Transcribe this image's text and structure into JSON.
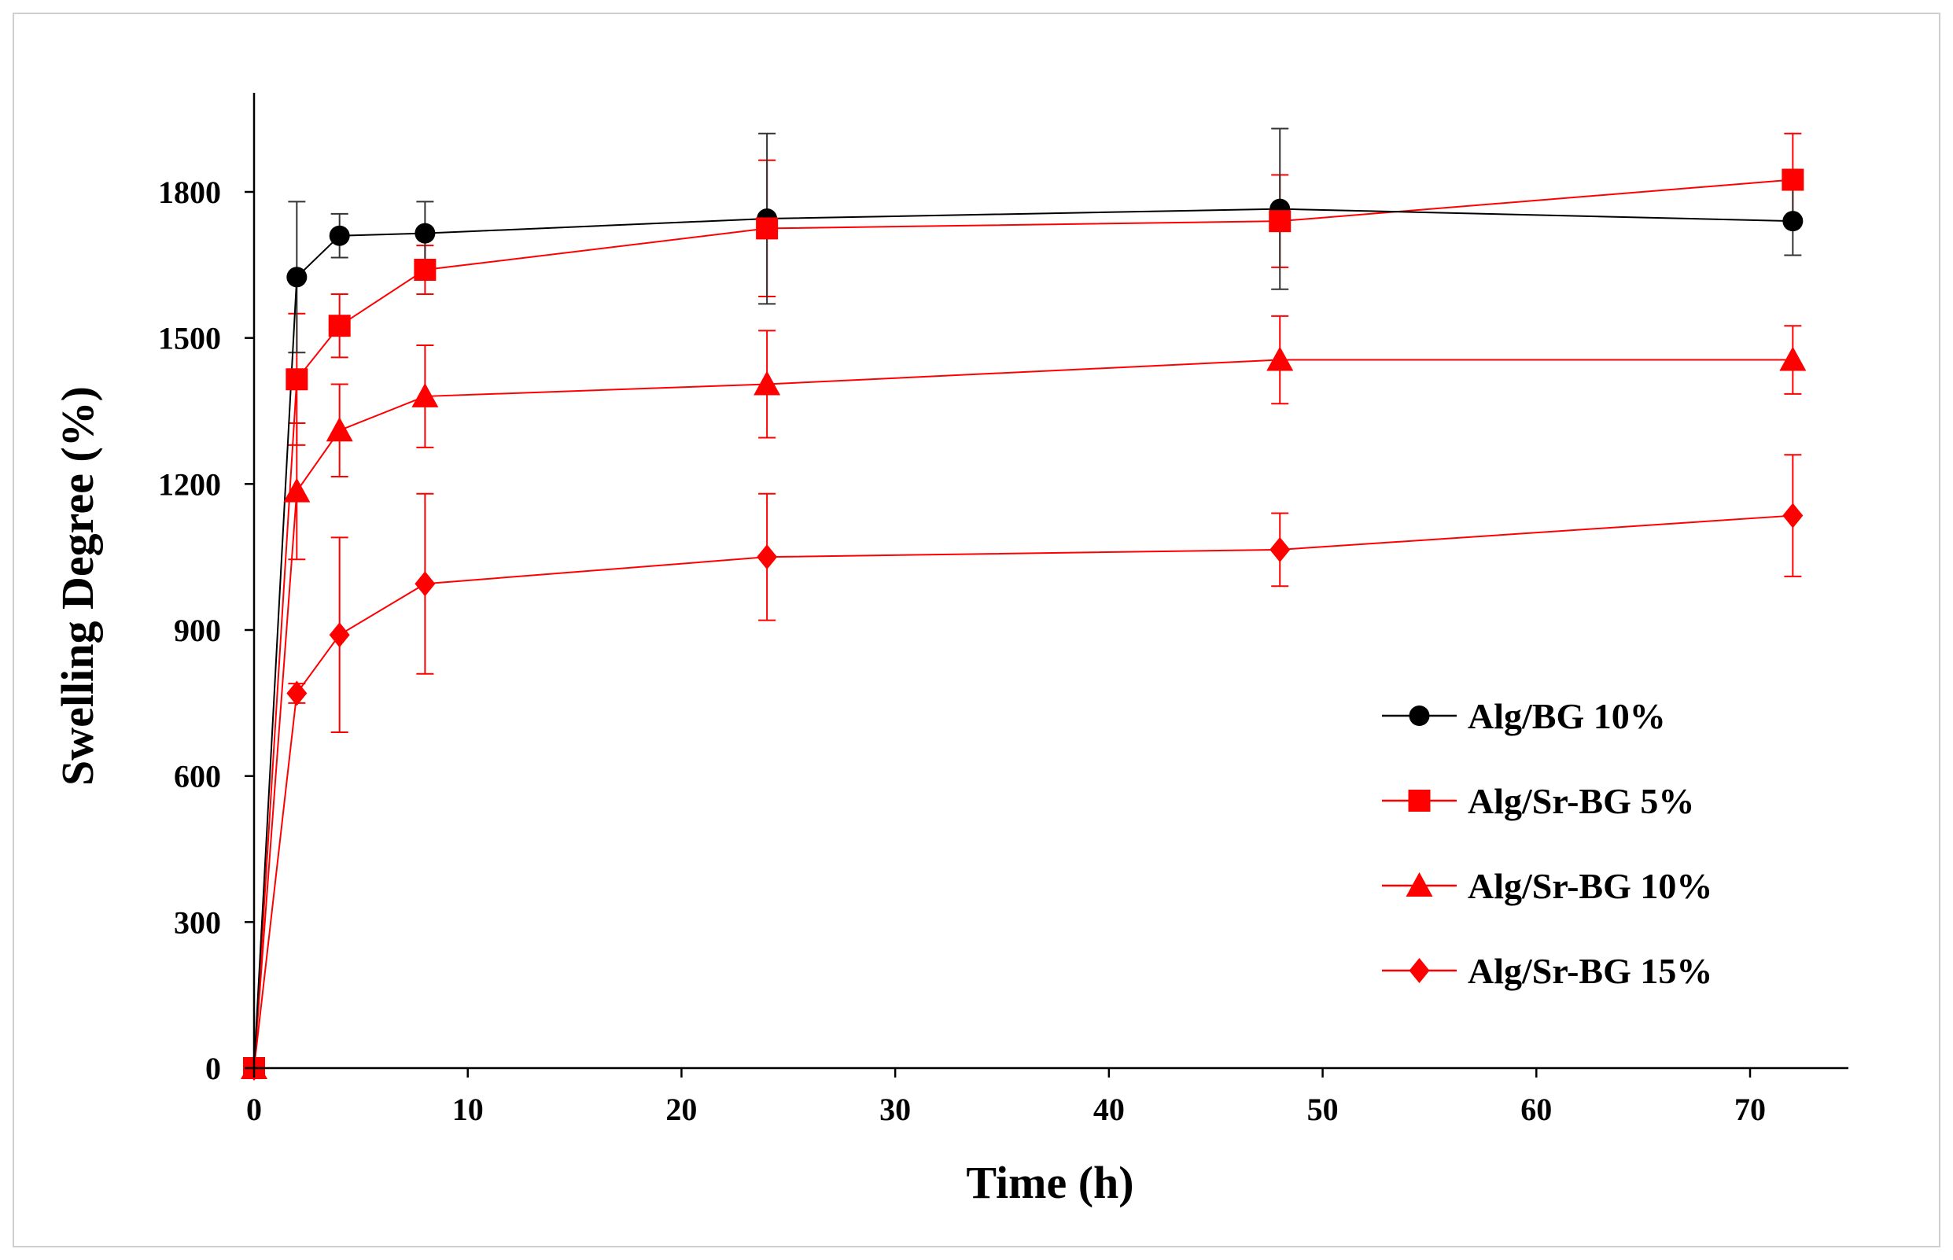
{
  "chart_data": {
    "type": "line",
    "title": "",
    "xlabel": "Time (h)",
    "ylabel": "Swelling Degree (%)",
    "xlim": [
      0,
      75
    ],
    "ylim": [
      0,
      1950
    ],
    "xticks": [
      0,
      10,
      20,
      30,
      40,
      50,
      60,
      70
    ],
    "yticks": [
      0,
      300,
      600,
      900,
      1200,
      1500,
      1800
    ],
    "x": [
      0,
      2,
      4,
      8,
      24,
      48,
      72
    ],
    "legend_position": "right",
    "series": [
      {
        "name": "Alg/BG 10%",
        "color": "#000000",
        "marker": "circle",
        "values": [
          0,
          1625,
          1710,
          1715,
          1745,
          1765,
          1740
        ],
        "errors": [
          0,
          155,
          45,
          65,
          175,
          165,
          70
        ]
      },
      {
        "name": "Alg/Sr-BG 5%",
        "color": "#ff0000",
        "marker": "square",
        "values": [
          0,
          1415,
          1525,
          1640,
          1725,
          1740,
          1825
        ],
        "errors": [
          0,
          135,
          65,
          50,
          140,
          95,
          95
        ]
      },
      {
        "name": "Alg/Sr-BG 10%",
        "color": "#ff0000",
        "marker": "triangle",
        "values": [
          0,
          1185,
          1310,
          1380,
          1405,
          1455,
          1455
        ],
        "errors": [
          0,
          140,
          95,
          105,
          110,
          90,
          70
        ]
      },
      {
        "name": "Alg/Sr-BG 15%",
        "color": "#ff0000",
        "marker": "diamond",
        "values": [
          0,
          770,
          890,
          995,
          1050,
          1065,
          1135
        ],
        "errors": [
          0,
          20,
          200,
          185,
          130,
          75,
          125
        ]
      }
    ]
  }
}
